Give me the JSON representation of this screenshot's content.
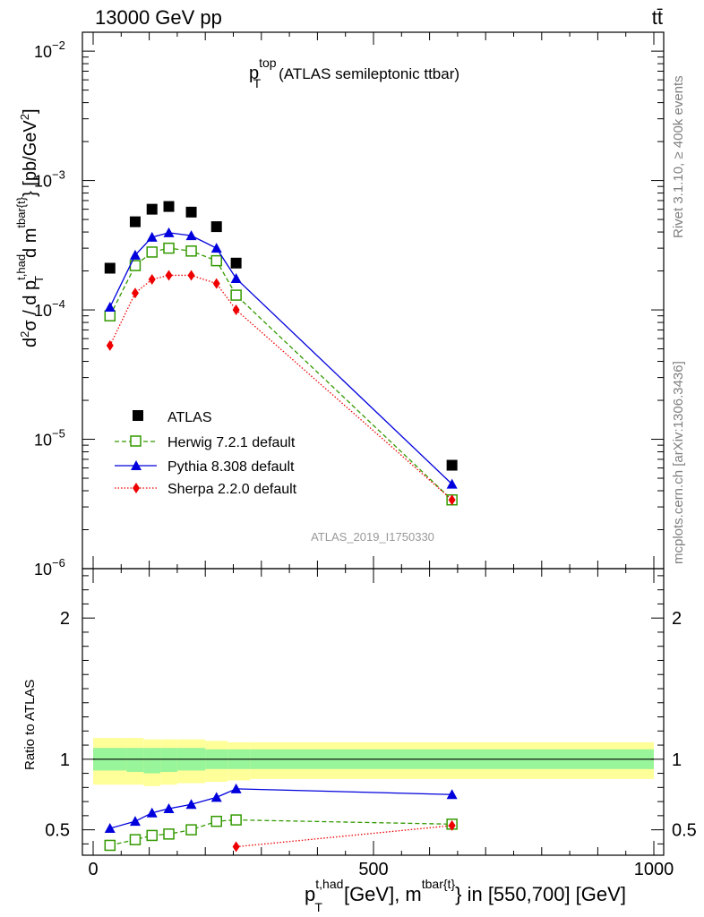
{
  "header": {
    "left": "13000 GeV pp",
    "right": "tt̄"
  },
  "side_labels": {
    "rivet": "Rivet 3.1.10, ≥ 400k events",
    "mcplots": "mcplots.cern.ch [arXiv:1306.3436]"
  },
  "colors": {
    "atlas": "#000000",
    "herwig": "#339900",
    "pythia": "#0000dd",
    "sherpa": "#ee0000",
    "band_inner": "#99f599",
    "band_outer": "#ffff99"
  },
  "chart_data": [
    {
      "type": "line",
      "panel": "main",
      "title_base": "p",
      "title_sup": "top",
      "title_sub": "T",
      "title_rest": "(ATLAS semileptonic ttbar)",
      "ylabel": "d²σ / d p_T^{t,had} d m^{tbar{t}} [pb/GeV²]",
      "yscale": "log",
      "ylim": [
        1e-06,
        0.014
      ],
      "xlim": [
        -20,
        1000
      ],
      "y_ticks": [
        {
          "value": 1e-06,
          "exp": "−6"
        },
        {
          "value": 1e-05,
          "exp": "−5"
        },
        {
          "value": 0.0001,
          "exp": "−4"
        },
        {
          "value": 0.001,
          "exp": "−3"
        },
        {
          "value": 0.01,
          "exp": "−2"
        }
      ],
      "analysis_label": "ATLAS_2019_I1750330",
      "series": [
        {
          "name": "ATLAS",
          "style": "data",
          "x": [
            30,
            75,
            105,
            135,
            175,
            220,
            255,
            640
          ],
          "y": [
            0.00021,
            0.00048,
            0.0006,
            0.00063,
            0.00057,
            0.00044,
            0.00023,
            6.3e-06
          ]
        },
        {
          "name": "Herwig 7.2.1 default",
          "style": "herwig",
          "x": [
            30,
            75,
            105,
            135,
            175,
            220,
            255,
            640
          ],
          "y": [
            9e-05,
            0.00022,
            0.00028,
            0.0003,
            0.000285,
            0.00024,
            0.00013,
            3.4e-06
          ]
        },
        {
          "name": "Pythia 8.308 default",
          "style": "pythia",
          "x": [
            30,
            75,
            105,
            135,
            175,
            220,
            255,
            640
          ],
          "y": [
            0.000105,
            0.000265,
            0.000365,
            0.000395,
            0.000375,
            0.0003,
            0.000175,
            4.5e-06
          ]
        },
        {
          "name": "Sherpa 2.2.0 default",
          "style": "sherpa",
          "x": [
            30,
            75,
            105,
            135,
            175,
            220,
            255,
            640
          ],
          "y": [
            5.3e-05,
            0.000135,
            0.000172,
            0.000185,
            0.000185,
            0.00016,
            0.0001,
            3.4e-06
          ]
        }
      ]
    },
    {
      "type": "line",
      "panel": "ratio",
      "ylabel": "Ratio to ATLAS",
      "xlabel": "p_T^{t,had} [GeV], m^{tbar{t}} in [550,700] [GeV]",
      "ylim": [
        0.32,
        2.35
      ],
      "xlim": [
        -20,
        1000
      ],
      "y_ticks": [
        0.5,
        1,
        2
      ],
      "x_ticks": [
        0,
        500,
        1000
      ],
      "band_edges": [
        0,
        60,
        90,
        120,
        150,
        200,
        240,
        280,
        1000
      ],
      "band_inner": [
        [
          0.92,
          1.08
        ],
        [
          0.91,
          1.08
        ],
        [
          0.9,
          1.08
        ],
        [
          0.91,
          1.08
        ],
        [
          0.92,
          1.08
        ],
        [
          0.93,
          1.07
        ],
        [
          0.93,
          1.07
        ],
        [
          0.93,
          1.07
        ]
      ],
      "band_outer": [
        [
          0.82,
          1.15
        ],
        [
          0.82,
          1.15
        ],
        [
          0.81,
          1.14
        ],
        [
          0.82,
          1.14
        ],
        [
          0.83,
          1.14
        ],
        [
          0.84,
          1.13
        ],
        [
          0.85,
          1.12
        ],
        [
          0.86,
          1.12
        ]
      ],
      "series": [
        {
          "name": "Herwig 7.2.1 default",
          "style": "herwig",
          "x": [
            30,
            75,
            105,
            135,
            175,
            220,
            255,
            640
          ],
          "y": [
            0.39,
            0.43,
            0.46,
            0.47,
            0.5,
            0.56,
            0.57,
            0.54
          ]
        },
        {
          "name": "Pythia 8.308 default",
          "style": "pythia",
          "x": [
            30,
            75,
            105,
            135,
            175,
            220,
            255,
            640
          ],
          "y": [
            0.51,
            0.56,
            0.62,
            0.65,
            0.68,
            0.73,
            0.79,
            0.75
          ]
        },
        {
          "name": "Sherpa 2.2.0 default",
          "style": "sherpa",
          "x": [
            255,
            640
          ],
          "y": [
            0.38,
            0.53
          ]
        }
      ]
    }
  ],
  "axis_text": {
    "ylabel_main_a": "d",
    "ylabel_main_sup2": "2",
    "ylabel_main_b": "σ / d p",
    "ylabel_main_sup_t": "t,had",
    "ylabel_main_sub_T": "T",
    "ylabel_main_c": "d m",
    "ylabel_main_sup_m": "tbar{t}",
    "ylabel_main_d": "} [pb/GeV",
    "ylabel_main_sup2b": "2",
    "ylabel_main_e": "]",
    "xlabel_a": "p",
    "xlabel_sup_t": "t,had",
    "xlabel_sub_T": "T",
    "xlabel_b": "[GeV], m",
    "xlabel_sup_m": "tbar{t}",
    "xlabel_c": "} in [550,700] [GeV]",
    "tick_base": "10"
  }
}
